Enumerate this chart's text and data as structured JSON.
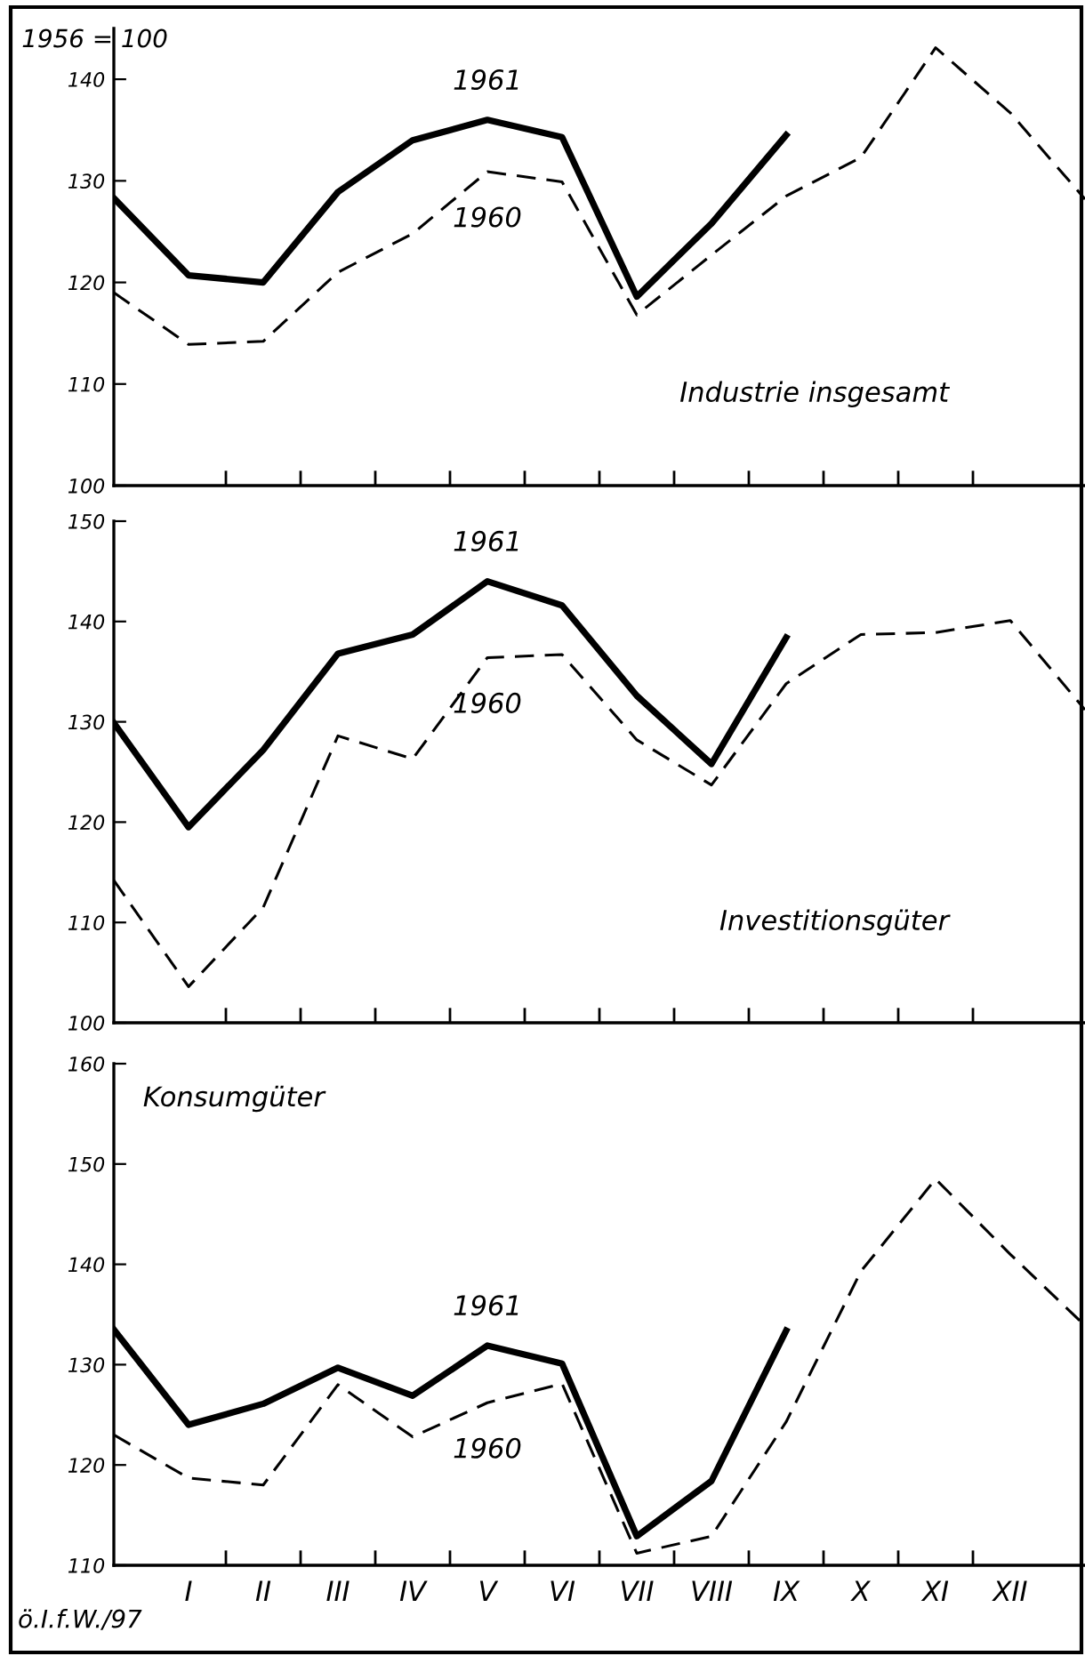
{
  "chart_data": [
    {
      "type": "line",
      "title": "Industrie insgesamt",
      "ylabel": "1956 = 100",
      "categories": [
        null,
        null,
        null,
        null,
        null,
        null,
        null,
        null,
        null,
        null,
        null,
        null,
        null,
        null
      ],
      "ylim": [
        100,
        145
      ],
      "yticks": [
        100,
        110,
        120,
        130,
        140
      ],
      "tick_labels": "y",
      "legend": false,
      "grid": false,
      "marker": "none",
      "series": [
        {
          "name": "1961",
          "color": "#000000",
          "line_style": "solid",
          "values": [
            128.3,
            120.7,
            120.0,
            128.9,
            134.0,
            136.0,
            134.3,
            118.6,
            125.8,
            134.5,
            null,
            null,
            null,
            null
          ]
        },
        {
          "name": "1960",
          "color": "#000000",
          "line_style": "dashed",
          "values": [
            119.0,
            113.9,
            114.2,
            121.0,
            124.8,
            130.9,
            129.9,
            116.8,
            122.7,
            128.5,
            132.3,
            143.1,
            136.7,
            128.2
          ]
        }
      ]
    },
    {
      "type": "line",
      "title": "Investitionsgüter",
      "categories": [
        null,
        null,
        null,
        null,
        null,
        null,
        null,
        null,
        null,
        null,
        null,
        null,
        null,
        null
      ],
      "ylim": [
        100,
        150
      ],
      "yticks": [
        100,
        110,
        120,
        130,
        140,
        150
      ],
      "tick_labels": "y",
      "legend": false,
      "grid": false,
      "marker": "none",
      "series": [
        {
          "name": "1961",
          "color": "#000000",
          "line_style": "solid",
          "values": [
            129.9,
            119.5,
            127.2,
            136.8,
            138.7,
            144.0,
            141.6,
            132.6,
            125.8,
            138.4,
            null,
            null,
            null,
            null
          ]
        },
        {
          "name": "1960",
          "color": "#000000",
          "line_style": "dashed",
          "values": [
            114.2,
            103.6,
            111.5,
            128.6,
            126.3,
            136.4,
            136.7,
            128.2,
            123.7,
            133.8,
            138.7,
            138.9,
            140.1,
            131.2
          ]
        }
      ]
    },
    {
      "type": "line",
      "title": "Konsumgüter",
      "categories": [
        null,
        "I",
        "II",
        "III",
        "IV",
        "V",
        "VI",
        "VII",
        "VIII",
        "IX",
        "X",
        "XI",
        "XII",
        null
      ],
      "ylim": [
        110,
        160
      ],
      "yticks": [
        110,
        120,
        130,
        140,
        150,
        160
      ],
      "legend": false,
      "grid": false,
      "marker": "none",
      "annotations": [
        "ö.I.f.W./97"
      ],
      "series": [
        {
          "name": "1961",
          "color": "#000000",
          "line_style": "solid",
          "values": [
            133.5,
            124.0,
            126.1,
            129.7,
            126.9,
            131.9,
            130.1,
            112.9,
            118.4,
            133.4,
            null,
            null,
            null,
            null
          ]
        },
        {
          "name": "1960",
          "color": "#000000",
          "line_style": "dashed",
          "values": [
            123.0,
            118.7,
            118.0,
            128.0,
            122.8,
            126.2,
            128.1,
            111.2,
            112.9,
            124.3,
            139.3,
            148.5,
            141.0,
            133.9
          ]
        }
      ]
    }
  ]
}
